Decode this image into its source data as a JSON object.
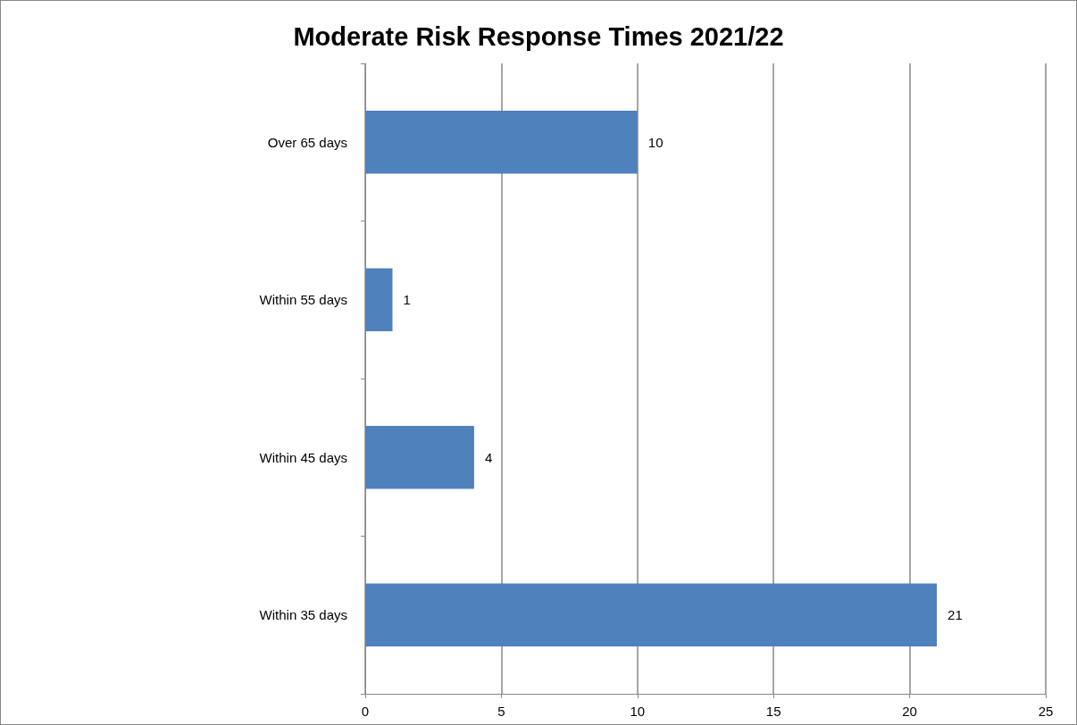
{
  "chart_data": {
    "type": "bar",
    "title": "Moderate Risk Response Times 2021/22",
    "orientation": "horizontal",
    "categories": [
      "Over 65 days",
      "Within 55 days",
      "Within 45 days",
      "Within 35 days"
    ],
    "values": [
      10,
      1,
      4,
      21
    ],
    "color": "#4f81bd",
    "xlim": [
      0,
      25
    ],
    "xticks": [
      0,
      5,
      10,
      15,
      20,
      25
    ],
    "grid": "x",
    "data_labels": true
  }
}
